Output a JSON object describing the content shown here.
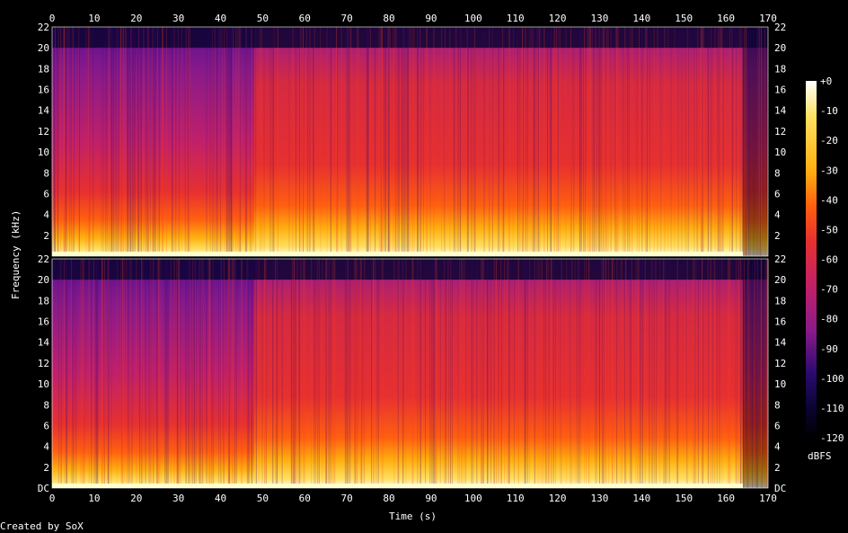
{
  "chart_data": {
    "type": "heatmap",
    "title": "",
    "xlabel": "Time (s)",
    "ylabel": "Frequency (kHz)",
    "colorbar_label": "dBFS",
    "footer": "Created by SoX",
    "x_range": [
      0,
      170
    ],
    "x_ticks": [
      "0",
      "10",
      "20",
      "30",
      "40",
      "50",
      "60",
      "70",
      "80",
      "90",
      "100",
      "110",
      "120",
      "130",
      "140",
      "150",
      "160",
      "170"
    ],
    "y_range_khz": [
      0,
      22
    ],
    "y_ticks": [
      "DC",
      "2",
      "4",
      "6",
      "8",
      "10",
      "12",
      "14",
      "16",
      "18",
      "20",
      "22"
    ],
    "colorbar_range": [
      -120,
      0
    ],
    "colorbar_ticks": [
      "+0",
      "-10",
      "-20",
      "-30",
      "-40",
      "-50",
      "-60",
      "-70",
      "-80",
      "-90",
      "-100",
      "-110",
      "-120"
    ],
    "channels": 2,
    "sections": [
      {
        "t_start": 0,
        "t_end": 16.5,
        "level_db": -75
      },
      {
        "t_start": 16.5,
        "t_end": 48,
        "level_db": -70
      },
      {
        "t_start": 48,
        "t_end": 164,
        "level_db": -58
      },
      {
        "t_start": 164,
        "t_end": 170,
        "level_db": -85
      }
    ],
    "colormap": [
      "#000000",
      "#0a0430",
      "#2a0a6e",
      "#5a0f90",
      "#8a1a8a",
      "#c0206a",
      "#e63030",
      "#ff6010",
      "#ffb010",
      "#ffe060",
      "#ffffff"
    ]
  }
}
